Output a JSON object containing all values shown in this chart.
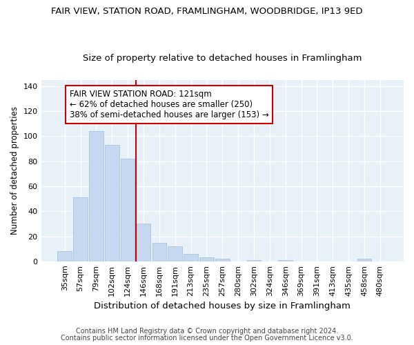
{
  "title": "FAIR VIEW, STATION ROAD, FRAMLINGHAM, WOODBRIDGE, IP13 9ED",
  "subtitle": "Size of property relative to detached houses in Framlingham",
  "xlabel": "Distribution of detached houses by size in Framlingham",
  "ylabel": "Number of detached properties",
  "categories": [
    "35sqm",
    "57sqm",
    "79sqm",
    "102sqm",
    "124sqm",
    "146sqm",
    "168sqm",
    "191sqm",
    "213sqm",
    "235sqm",
    "257sqm",
    "280sqm",
    "302sqm",
    "324sqm",
    "346sqm",
    "369sqm",
    "391sqm",
    "413sqm",
    "435sqm",
    "458sqm",
    "480sqm"
  ],
  "values": [
    8,
    51,
    104,
    93,
    82,
    30,
    15,
    12,
    6,
    3,
    2,
    0,
    1,
    0,
    1,
    0,
    0,
    0,
    0,
    2,
    0
  ],
  "bar_color": "#c5d8f0",
  "bar_edge_color": "#a8c4e0",
  "fig_bg_color": "#ffffff",
  "ax_bg_color": "#e8f0f8",
  "grid_color": "#ffffff",
  "vline_color": "#cc0000",
  "vline_x_index": 4,
  "annotation_text": "FAIR VIEW STATION ROAD: 121sqm\n← 62% of detached houses are smaller (250)\n38% of semi-detached houses are larger (153) →",
  "annotation_box_facecolor": "#ffffff",
  "annotation_box_edgecolor": "#cc0000",
  "footer1": "Contains HM Land Registry data © Crown copyright and database right 2024.",
  "footer2": "Contains public sector information licensed under the Open Government Licence v3.0.",
  "ylim": [
    0,
    145
  ],
  "yticks": [
    0,
    20,
    40,
    60,
    80,
    100,
    120,
    140
  ],
  "title_fontsize": 9.5,
  "subtitle_fontsize": 9.5,
  "xlabel_fontsize": 9.5,
  "ylabel_fontsize": 8.5,
  "tick_fontsize": 8,
  "footer_fontsize": 7,
  "annotation_fontsize": 8.5
}
